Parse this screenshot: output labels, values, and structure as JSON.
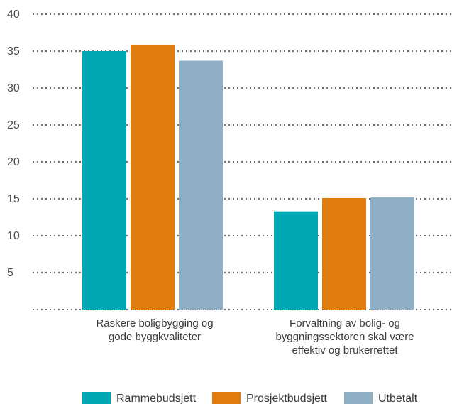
{
  "chart_data": {
    "type": "bar",
    "categories": [
      [
        "Raskere boligbygging og",
        "gode byggkvaliteter"
      ],
      [
        "Forvaltning av bolig- og",
        "byggningssektoren skal være",
        "effektiv og brukerrettet"
      ]
    ],
    "series": [
      {
        "name": "Rammebudsjett",
        "color": "#00a8b5",
        "values": [
          35,
          13.3
        ]
      },
      {
        "name": "Prosjektbudsjett",
        "color": "#e07b0e",
        "values": [
          35.8,
          15.1
        ]
      },
      {
        "name": "Utbetalt",
        "color": "#8eafc6",
        "values": [
          33.7,
          15.2
        ]
      }
    ],
    "ylim": [
      0,
      40
    ],
    "yticks": [
      "5",
      "10",
      "15",
      "20",
      "25",
      "30",
      "35",
      "40"
    ],
    "ytick_values": [
      5,
      10,
      15,
      20,
      25,
      30,
      35,
      40
    ],
    "grid": true,
    "legend_position": "bottom"
  }
}
